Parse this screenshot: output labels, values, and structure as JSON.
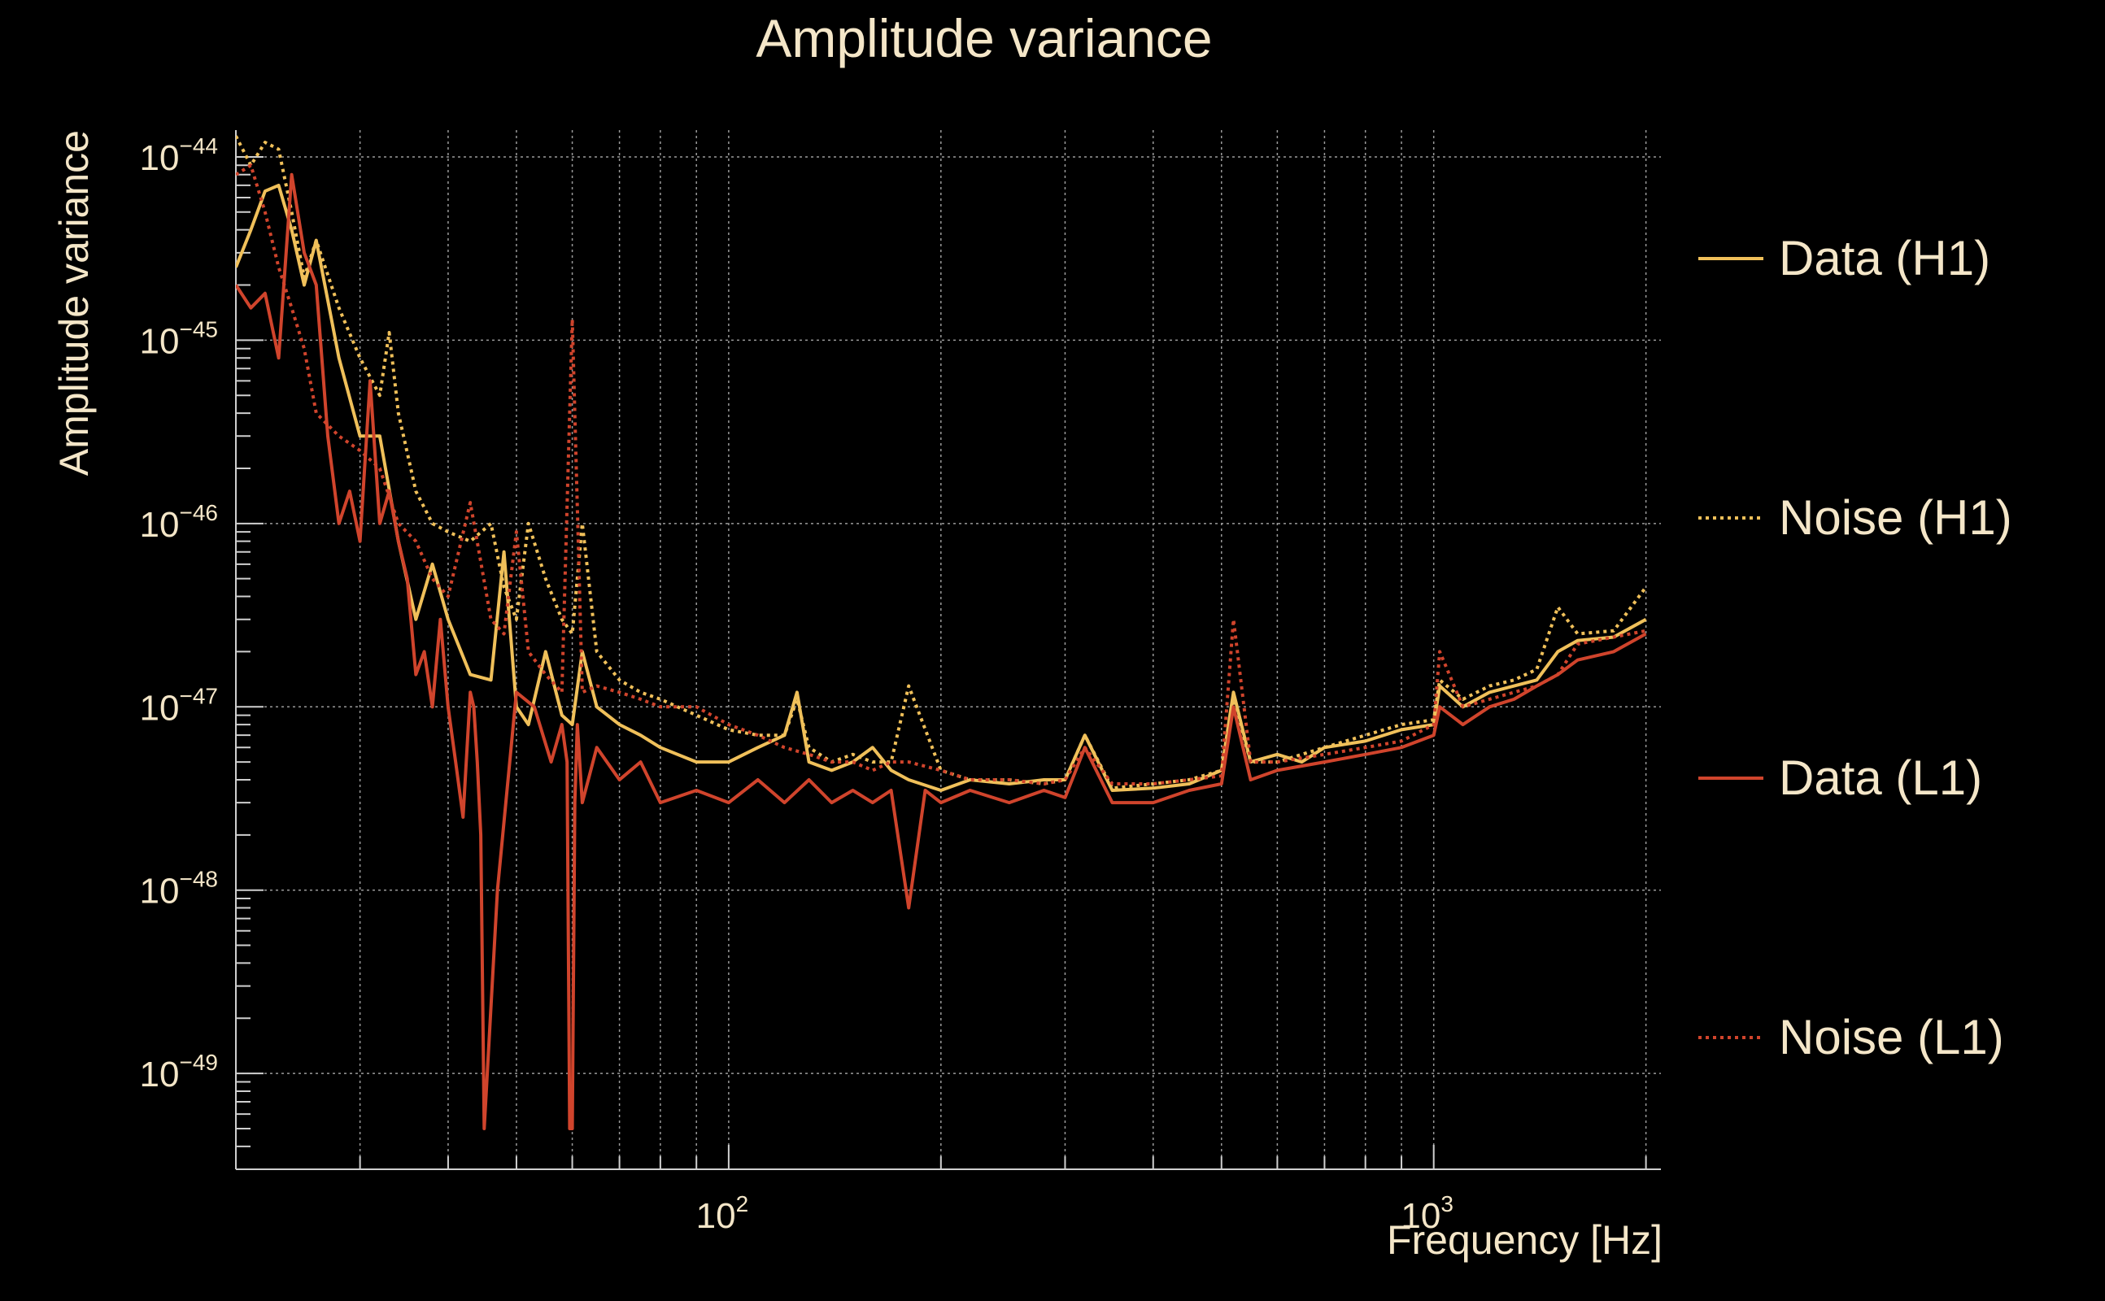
{
  "chart_data": {
    "type": "line",
    "title": "Amplitude variance",
    "xlabel": "Frequency [Hz]",
    "ylabel": "Amplitude variance",
    "x_scale": "log",
    "y_scale": "log",
    "xlim": [
      20,
      2100
    ],
    "ylim": [
      3e-50,
      1.4e-44
    ],
    "grid": true,
    "legend": "right",
    "x_ticks": [
      {
        "value": 100,
        "base": "10",
        "exp": "2"
      },
      {
        "value": 1000,
        "base": "10",
        "exp": "3"
      }
    ],
    "y_ticks": [
      {
        "value": 1e-44,
        "base": "10",
        "exp": "−44"
      },
      {
        "value": 1e-45,
        "base": "10",
        "exp": "−45"
      },
      {
        "value": 1e-46,
        "base": "10",
        "exp": "−46"
      },
      {
        "value": 1e-47,
        "base": "10",
        "exp": "−47"
      },
      {
        "value": 1e-48,
        "base": "10",
        "exp": "−48"
      },
      {
        "value": 1e-49,
        "base": "10",
        "exp": "−49"
      }
    ],
    "series": [
      {
        "name": "Data (H1)",
        "color": "#f0c05a",
        "style": "solid",
        "x": [
          20,
          21,
          22,
          23,
          24,
          25,
          26,
          28,
          30,
          32,
          34,
          36,
          38,
          40,
          43,
          46,
          48,
          50,
          52,
          55,
          58,
          60,
          62,
          65,
          70,
          75,
          80,
          90,
          100,
          110,
          120,
          125,
          130,
          140,
          150,
          160,
          170,
          180,
          200,
          220,
          250,
          280,
          300,
          320,
          350,
          400,
          450,
          500,
          520,
          550,
          600,
          650,
          700,
          800,
          900,
          1000,
          1020,
          1100,
          1200,
          1300,
          1400,
          1500,
          1600,
          1800,
          2000
        ],
        "y": [
          2.5e-45,
          4e-45,
          6.5e-45,
          7e-45,
          4e-45,
          2e-45,
          3.5e-45,
          8e-46,
          3e-46,
          3e-46,
          8e-47,
          3e-47,
          6e-47,
          3e-47,
          1.5e-47,
          1.4e-47,
          7e-47,
          1e-47,
          8e-48,
          2e-47,
          9e-48,
          8e-48,
          2e-47,
          1e-47,
          8e-48,
          7e-48,
          6e-48,
          5e-48,
          5e-48,
          6e-48,
          7e-48,
          1.2e-47,
          5e-48,
          4.5e-48,
          5e-48,
          6e-48,
          4.5e-48,
          4e-48,
          3.5e-48,
          4e-48,
          3.8e-48,
          4e-48,
          4e-48,
          7e-48,
          3.5e-48,
          3.6e-48,
          3.8e-48,
          4.5e-48,
          1.2e-47,
          5e-48,
          5.5e-48,
          5e-48,
          6e-48,
          6.5e-48,
          7.5e-48,
          8e-48,
          1.3e-47,
          1e-47,
          1.2e-47,
          1.3e-47,
          1.4e-47,
          2e-47,
          2.3e-47,
          2.4e-47,
          3e-47
        ]
      },
      {
        "name": "Noise (H1)",
        "color": "#f0c05a",
        "style": "dotted",
        "x": [
          20,
          21,
          22,
          23,
          24,
          25,
          26,
          28,
          30,
          32,
          33,
          34,
          36,
          38,
          40,
          43,
          46,
          48,
          50,
          52,
          55,
          58,
          60,
          62,
          65,
          70,
          75,
          80,
          90,
          100,
          110,
          120,
          125,
          130,
          140,
          150,
          160,
          170,
          180,
          200,
          220,
          250,
          280,
          300,
          320,
          350,
          400,
          450,
          500,
          520,
          550,
          600,
          650,
          700,
          800,
          900,
          1000,
          1020,
          1100,
          1200,
          1300,
          1400,
          1500,
          1600,
          1800,
          2000
        ],
        "y": [
          1.3e-44,
          9e-45,
          1.2e-44,
          1.1e-44,
          5e-45,
          2.2e-45,
          3.5e-45,
          1.5e-45,
          8e-46,
          5e-46,
          1.1e-45,
          4e-46,
          1.5e-46,
          1e-46,
          9e-47,
          8e-47,
          1e-46,
          4.5e-47,
          3e-47,
          1e-46,
          5e-47,
          3e-47,
          2.5e-47,
          1e-46,
          2e-47,
          1.4e-47,
          1.2e-47,
          1.1e-47,
          9e-48,
          7.5e-48,
          7e-48,
          7e-48,
          1.1e-47,
          6e-48,
          5e-48,
          5.5e-48,
          5e-48,
          5e-48,
          1.3e-47,
          4.5e-48,
          4e-48,
          4e-48,
          3.8e-48,
          4e-48,
          7e-48,
          3.6e-48,
          3.8e-48,
          4e-48,
          4.5e-48,
          1.1e-47,
          5e-48,
          5e-48,
          5.5e-48,
          6e-48,
          7e-48,
          8e-48,
          8.5e-48,
          1.4e-47,
          1.1e-47,
          1.3e-47,
          1.4e-47,
          1.6e-47,
          3.5e-47,
          2.5e-47,
          2.6e-47,
          4.5e-47
        ]
      },
      {
        "name": "Data (L1)",
        "color": "#d0442c",
        "style": "solid",
        "x": [
          20,
          21,
          22,
          23,
          24,
          25,
          26,
          27,
          28,
          29,
          30,
          31,
          32,
          33,
          34,
          35,
          36,
          37,
          38,
          39,
          40,
          41,
          42,
          43,
          43.5,
          44,
          44.5,
          45,
          47,
          50,
          53,
          56,
          58,
          59,
          59.5,
          60,
          60.5,
          61,
          62,
          65,
          70,
          75,
          80,
          90,
          100,
          110,
          120,
          130,
          140,
          150,
          160,
          170,
          180,
          190,
          200,
          220,
          250,
          280,
          300,
          320,
          350,
          400,
          450,
          500,
          520,
          550,
          600,
          700,
          800,
          900,
          1000,
          1020,
          1100,
          1200,
          1300,
          1400,
          1500,
          1600,
          1800,
          2000
        ],
        "y": [
          2e-45,
          1.5e-45,
          1.8e-45,
          8e-46,
          8e-45,
          3e-45,
          2e-45,
          3e-46,
          1e-46,
          1.5e-46,
          8e-47,
          6e-46,
          1e-46,
          1.5e-46,
          8e-47,
          5e-47,
          1.5e-47,
          2e-47,
          1e-47,
          3e-47,
          1e-47,
          5e-48,
          2.5e-48,
          1.2e-47,
          1e-47,
          5e-48,
          2e-48,
          5e-50,
          1e-48,
          1.2e-47,
          1e-47,
          5e-48,
          8e-48,
          5e-48,
          5e-50,
          5e-50,
          3e-48,
          8e-48,
          3e-48,
          6e-48,
          4e-48,
          5e-48,
          3e-48,
          3.5e-48,
          3e-48,
          4e-48,
          3e-48,
          4e-48,
          3e-48,
          3.5e-48,
          3e-48,
          3.5e-48,
          8e-49,
          3.5e-48,
          3e-48,
          3.5e-48,
          3e-48,
          3.5e-48,
          3.2e-48,
          6e-48,
          3e-48,
          3e-48,
          3.5e-48,
          3.8e-48,
          1e-47,
          4e-48,
          4.5e-48,
          5e-48,
          5.5e-48,
          6e-48,
          7e-48,
          1e-47,
          8e-48,
          1e-47,
          1.1e-47,
          1.3e-47,
          1.5e-47,
          1.8e-47,
          2e-47,
          2.5e-47
        ]
      },
      {
        "name": "Noise (L1)",
        "color": "#d0442c",
        "style": "dotted",
        "x": [
          20,
          21,
          22,
          23,
          24,
          25,
          26,
          28,
          30,
          32,
          34,
          36,
          38,
          40,
          43,
          46,
          48,
          50,
          52,
          55,
          58,
          60,
          62,
          65,
          70,
          75,
          80,
          90,
          100,
          110,
          120,
          130,
          140,
          150,
          160,
          170,
          180,
          200,
          220,
          250,
          280,
          300,
          320,
          350,
          400,
          450,
          500,
          520,
          550,
          600,
          700,
          800,
          900,
          1000,
          1020,
          1100,
          1200,
          1300,
          1400,
          1500,
          1600,
          1800,
          2000
        ],
        "y": [
          8e-45,
          9e-45,
          5e-45,
          2.5e-45,
          1.5e-45,
          9e-46,
          4e-46,
          3e-46,
          2.5e-46,
          2e-46,
          1e-46,
          8e-47,
          5e-47,
          4e-47,
          1.3e-46,
          3e-47,
          2.5e-47,
          9e-47,
          2e-47,
          1.5e-47,
          1.2e-47,
          1.3e-45,
          1.2e-47,
          1.3e-47,
          1.2e-47,
          1.1e-47,
          1e-47,
          1e-47,
          8e-48,
          7e-48,
          6e-48,
          5.5e-48,
          5e-48,
          5e-48,
          4.5e-48,
          5e-48,
          5e-48,
          4.5e-48,
          4e-48,
          4e-48,
          3.8e-48,
          4e-48,
          6e-48,
          3.8e-48,
          3.8e-48,
          4e-48,
          4.2e-48,
          3e-47,
          5e-48,
          5e-48,
          5.5e-48,
          6e-48,
          6.5e-48,
          8e-48,
          2e-47,
          1e-47,
          1.1e-47,
          1.2e-47,
          1.3e-47,
          1.5e-47,
          2.2e-47,
          2.4e-47,
          2.6e-47
        ]
      }
    ]
  }
}
